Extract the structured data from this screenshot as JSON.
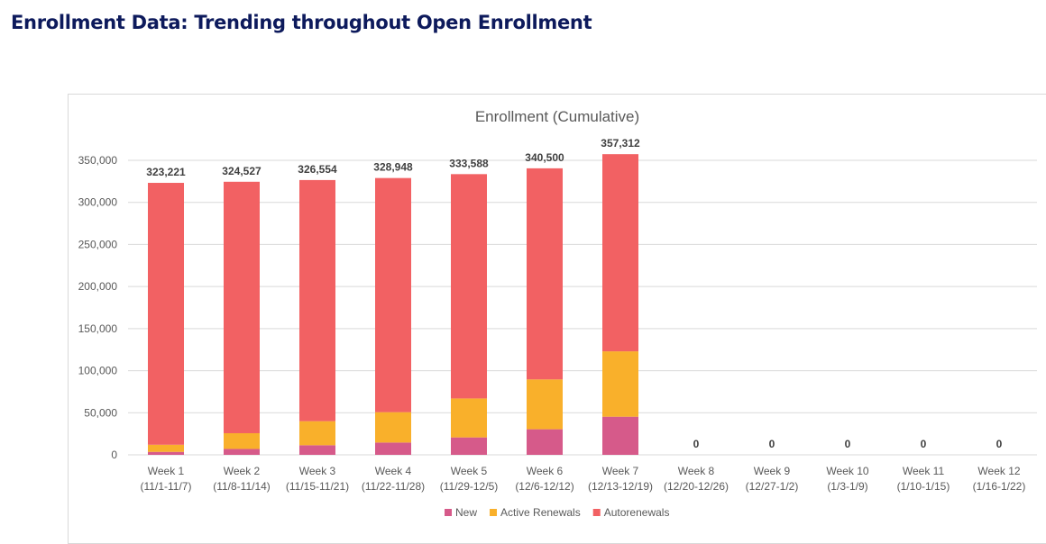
{
  "page_title": "Enrollment Data: Trending throughout Open Enrollment",
  "chart_data": {
    "type": "bar",
    "stacked": true,
    "title": "Enrollment (Cumulative)",
    "xlabel": "",
    "ylabel": "",
    "ylim": [
      0,
      350000
    ],
    "yticks": [
      0,
      50000,
      100000,
      150000,
      200000,
      250000,
      300000,
      350000
    ],
    "ytick_labels": [
      "0",
      "50,000",
      "100,000",
      "150,000",
      "200,000",
      "250,000",
      "300,000",
      "350,000"
    ],
    "grid": true,
    "legend_position": "bottom",
    "categories": [
      [
        "Week 1",
        "(11/1-11/7)"
      ],
      [
        "Week 2",
        "(11/8-11/14)"
      ],
      [
        "Week 3",
        "(11/15-11/21)"
      ],
      [
        "Week 4",
        "(11/22-11/28)"
      ],
      [
        "Week 5",
        "(11/29-12/5)"
      ],
      [
        "Week 6",
        "(12/6-12/12)"
      ],
      [
        "Week 7",
        "(12/13-12/19)"
      ],
      [
        "Week 8",
        "(12/20-12/26)"
      ],
      [
        "Week 9",
        "(12/27-1/2)"
      ],
      [
        "Week 10",
        "(1/3-1/9)"
      ],
      [
        "Week 11",
        "(1/10-1/15)"
      ],
      [
        "Week 12",
        "(1/16-1/22)"
      ]
    ],
    "series": [
      {
        "name": "New",
        "color": "#d65a8a",
        "values": [
          3500,
          7000,
          11400,
          14600,
          20700,
          30400,
          45300,
          0,
          0,
          0,
          0,
          0
        ]
      },
      {
        "name": "Active Renewals",
        "color": "#f9b02b",
        "values": [
          8500,
          18700,
          28600,
          36100,
          46300,
          59200,
          77700,
          0,
          0,
          0,
          0,
          0
        ]
      },
      {
        "name": "Autorenewals",
        "color": "#f26163",
        "values": [
          311221,
          298827,
          286554,
          278248,
          266588,
          250900,
          234312,
          0,
          0,
          0,
          0,
          0
        ]
      }
    ],
    "totals": [
      323221,
      324527,
      326554,
      328948,
      333588,
      340500,
      357312,
      0,
      0,
      0,
      0,
      0
    ],
    "total_labels": [
      "323,221",
      "324,527",
      "326,554",
      "328,948",
      "333,588",
      "340,500",
      "357,312",
      "0",
      "0",
      "0",
      "0",
      "0"
    ]
  }
}
